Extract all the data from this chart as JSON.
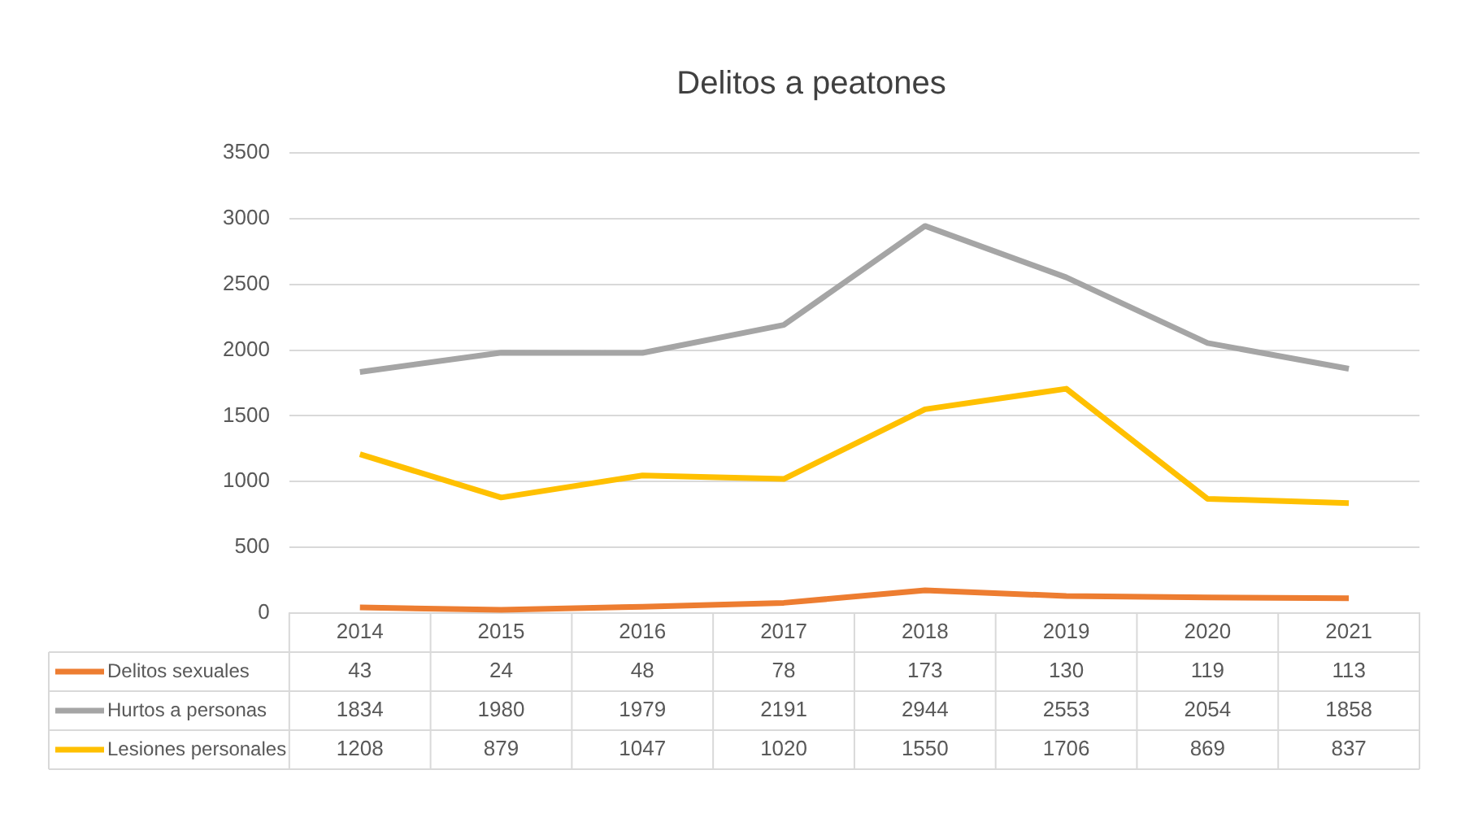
{
  "chart_data": {
    "type": "line",
    "title": "Delitos a peatones",
    "categories": [
      "2014",
      "2015",
      "2016",
      "2017",
      "2018",
      "2019",
      "2020",
      "2021"
    ],
    "series": [
      {
        "name": "Delitos sexuales",
        "color": "#ed7d31",
        "values": [
          43,
          24,
          48,
          78,
          173,
          130,
          119,
          113
        ]
      },
      {
        "name": "Hurtos a personas",
        "color": "#a5a5a5",
        "values": [
          1834,
          1980,
          1979,
          2191,
          2944,
          2553,
          2054,
          1858
        ]
      },
      {
        "name": "Lesiones personales",
        "color": "#ffc000",
        "values": [
          1208,
          879,
          1047,
          1020,
          1550,
          1706,
          869,
          837
        ]
      }
    ],
    "ylim": [
      0,
      3500
    ],
    "yticks": [
      0,
      500,
      1000,
      1500,
      2000,
      2500,
      3000,
      3500
    ],
    "grid": "y",
    "legend": "bottom",
    "data_labels": true,
    "marker": "none",
    "line_style": "solid"
  }
}
